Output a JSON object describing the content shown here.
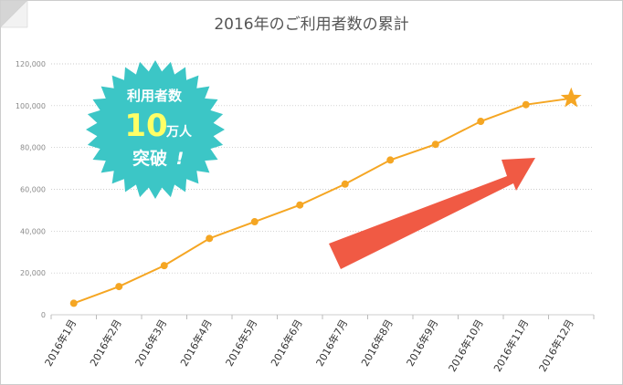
{
  "chart_data": {
    "type": "line",
    "title": "2016年のご利用者数の累計",
    "categories": [
      "2016年1月",
      "2016年2月",
      "2016年3月",
      "2016年4月",
      "2016年5月",
      "2016年6月",
      "2016年7月",
      "2016年8月",
      "2016年9月",
      "2016年10月",
      "2016年11月",
      "2016年12月"
    ],
    "series": [
      {
        "values": [
          5500,
          13500,
          23500,
          36500,
          44500,
          52500,
          62500,
          74000,
          81500,
          92500,
          100500,
          103500
        ]
      }
    ],
    "y_ticks": [
      "0",
      "20,000",
      "40,000",
      "60,000",
      "80,000",
      "100,000",
      "120,000"
    ],
    "ylim": [
      0,
      120000
    ],
    "grid": true,
    "line_color": "#f5a623",
    "last_point_marker": "star-icon"
  },
  "badge": {
    "line1": "利用者数",
    "number": "10",
    "unit": "万人",
    "line3": "突破",
    "exclaim": "!",
    "color": "#3cc6c6",
    "number_color": "#ffff66"
  },
  "arrow": {
    "color": "#f05a44",
    "icon": "arrow-up-right-icon"
  }
}
